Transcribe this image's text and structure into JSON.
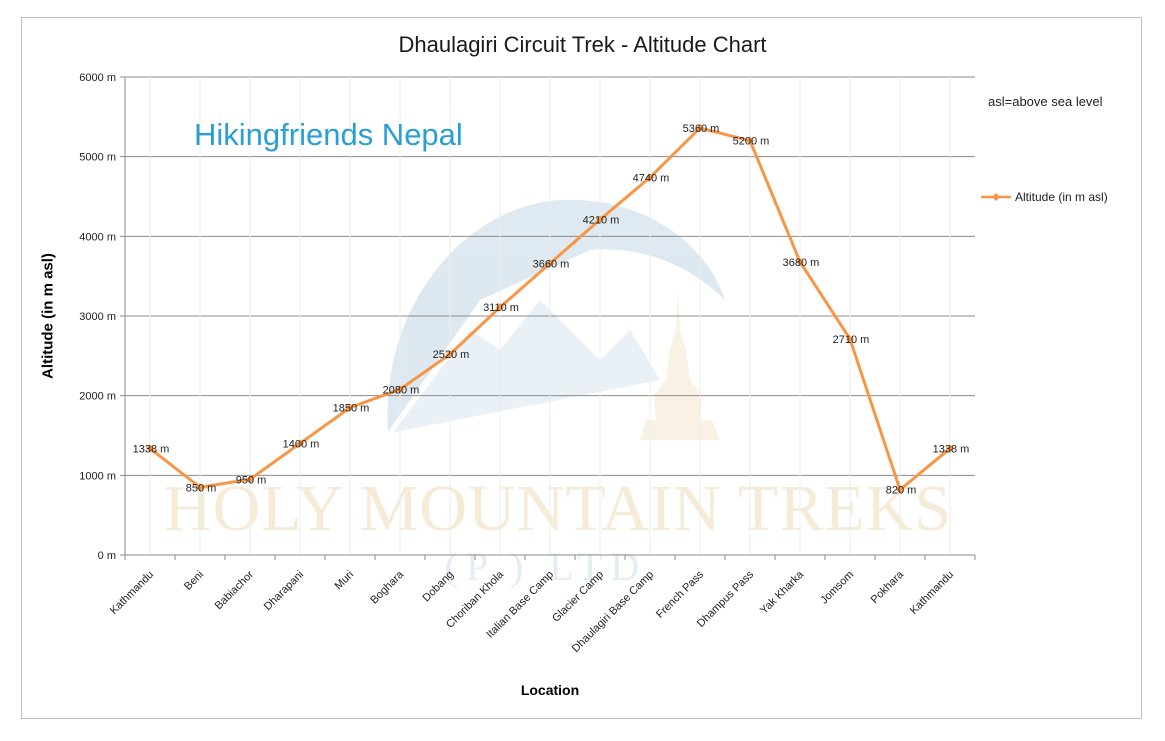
{
  "chart_data": {
    "type": "line",
    "title": "Dhaulagiri Circuit Trek - Altitude Chart",
    "xlabel": "Location",
    "ylabel": "Altitude (in m asl)",
    "ylim": [
      0,
      6000
    ],
    "yticks": [
      "0 m",
      "1000 m",
      "2000 m",
      "3000 m",
      "4000 m",
      "5000 m",
      "6000 m"
    ],
    "ytick_values": [
      0,
      1000,
      2000,
      3000,
      4000,
      5000,
      6000
    ],
    "grid": true,
    "legend_position": "right",
    "categories": [
      "Kathmandu",
      "Beni",
      "Babiachor",
      "Dharapani",
      "Muri",
      "Boghara",
      "Dobang",
      "Choriban Khola",
      "Italian Base Camp",
      "Glacier Camp",
      "Dhaulagiri Base Camp",
      "French Pass",
      "Dhampus Pass",
      "Yak Kharka",
      "Jomsom",
      "Pokhara",
      "Kathmandu"
    ],
    "series": [
      {
        "name": "Altitude (in m asl)",
        "color": "#f79646",
        "values": [
          1338,
          850,
          950,
          1400,
          1850,
          2080,
          2520,
          3110,
          3660,
          4210,
          4740,
          5360,
          5200,
          3680,
          2710,
          820,
          1338
        ],
        "labels": [
          "1338 m",
          "850 m",
          "950 m",
          "1400 m",
          "1850 m",
          "2080 m",
          "2520 m",
          "3110 m",
          "3660 m",
          "4210 m",
          "4740 m",
          "5360 m",
          "5200 m",
          "3680 m",
          "2710 m",
          "820 m",
          "1338 m"
        ]
      }
    ]
  },
  "brand_text": "Hikingfriends Nepal",
  "note": "asl=above sea level",
  "watermark": {
    "line1": "HOLY MOUNTAIN TREKS",
    "line2": "(P.) LTD."
  }
}
